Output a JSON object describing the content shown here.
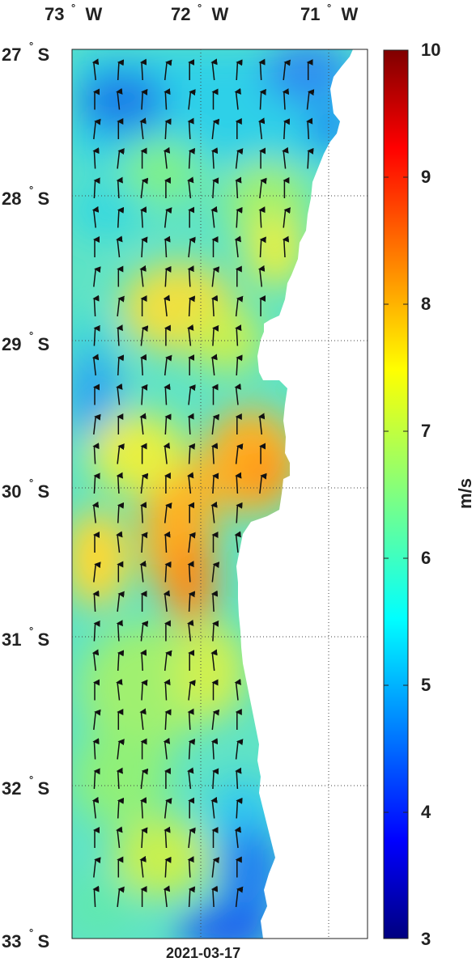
{
  "map": {
    "date": "2021-03-17",
    "lon_labels": [
      {
        "deg": "73",
        "dir": "W"
      },
      {
        "deg": "72",
        "dir": "W"
      },
      {
        "deg": "71",
        "dir": "W"
      }
    ],
    "lat_labels": [
      {
        "deg": "27",
        "dir": "S"
      },
      {
        "deg": "28",
        "dir": "S"
      },
      {
        "deg": "29",
        "dir": "S"
      },
      {
        "deg": "30",
        "dir": "S"
      },
      {
        "deg": "31",
        "dir": "S"
      },
      {
        "deg": "32",
        "dir": "S"
      },
      {
        "deg": "33",
        "dir": "S"
      }
    ],
    "colorbar": {
      "unit": "m/s",
      "min": 3,
      "max": 10,
      "ticks": [
        "10",
        "9",
        "8",
        "7",
        "6",
        "5",
        "4",
        "3"
      ],
      "colormap": "jet"
    },
    "field": "wind speed with direction arrows",
    "colors": {
      "land": "#ffffff",
      "grid": "#444444",
      "arrow": "#111111"
    }
  }
}
